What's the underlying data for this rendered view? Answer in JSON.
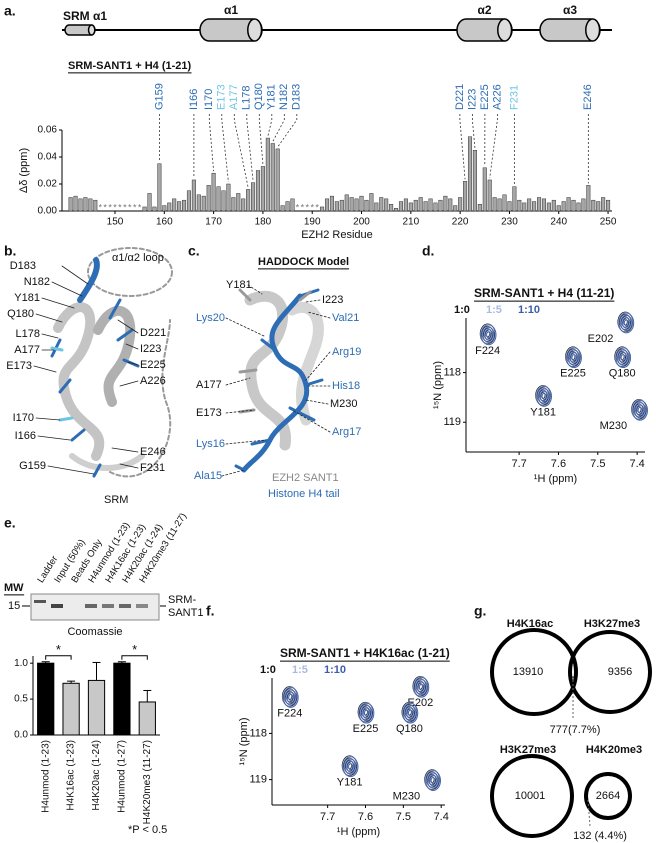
{
  "panel_labels": {
    "a": "a.",
    "b": "b.",
    "c": "c.",
    "d": "d.",
    "e": "e.",
    "f": "f.",
    "g": "g."
  },
  "panel_a": {
    "domains": [
      "SRM α1",
      "α1",
      "α2",
      "α3"
    ],
    "construct": "SRM-SANT1 + H4 (1-21)",
    "residue_labels": [
      {
        "text": "G159",
        "color": "#2d6db5"
      },
      {
        "text": "I166",
        "color": "#2d6db5"
      },
      {
        "text": "I170",
        "color": "#2d6db5"
      },
      {
        "text": "E173",
        "color": "#6ec6e6"
      },
      {
        "text": "A177",
        "color": "#6ec6e6"
      },
      {
        "text": "L178",
        "color": "#2d6db5"
      },
      {
        "text": "Q180",
        "color": "#2d6db5"
      },
      {
        "text": "Y181",
        "color": "#2d6db5"
      },
      {
        "text": "N182",
        "color": "#2d6db5"
      },
      {
        "text": "D183",
        "color": "#2d6db5"
      },
      {
        "text": "D221",
        "color": "#2d6db5"
      },
      {
        "text": "I223",
        "color": "#2d6db5"
      },
      {
        "text": "E225",
        "color": "#2d6db5"
      },
      {
        "text": "A226",
        "color": "#2d6db5"
      },
      {
        "text": "F231",
        "color": "#6ec6e6"
      },
      {
        "text": "E246",
        "color": "#2d6db5"
      }
    ]
  },
  "panel_b": {
    "labels": [
      "D183",
      "N182",
      "Y181",
      "Q180",
      "L178",
      "A177",
      "E173",
      "I170",
      "I166",
      "G159",
      "SRM",
      "α1/α2 loop",
      "D221",
      "I223",
      "E225",
      "A226",
      "E246",
      "F231"
    ]
  },
  "panel_c": {
    "title": "HADDOCK Model",
    "labels": [
      "Y181",
      "I223",
      "Lys20",
      "Val21",
      "A177",
      "Arg19",
      "His18",
      "E173",
      "M230",
      "Lys16",
      "Arg17",
      "Ala15"
    ],
    "legend": [
      "EZH2 SANT1",
      "Histone H4 tail"
    ]
  },
  "panel_e": {
    "mw_label": "MW",
    "mw_marker": 15,
    "lanes": [
      "Ladder",
      "Input (50%)",
      "Beads Only",
      "H4unmod (1-23)",
      "H4K16ac (1-23)",
      "H4K20ac (1-24)",
      "H4K20me3 (11-27)"
    ],
    "band_label": [
      "SRM-",
      "SANT1"
    ],
    "stain": "Coomassie",
    "footnote": "*P < 0.5"
  },
  "venn": [
    {
      "left": "H4K16ac",
      "right": "H3K27me3",
      "left_count": 13910,
      "right_count": 9356,
      "overlap": "777(7.7%)"
    },
    {
      "left": "H3K27me3",
      "right": "H4K20me3",
      "left_count": 10001,
      "right_count": 2664,
      "overlap": "132 (4.4%)"
    }
  ],
  "chart_data": [
    {
      "type": "bar",
      "x": [
        141,
        142,
        143,
        144,
        145,
        146,
        147,
        148,
        149,
        150,
        151,
        152,
        153,
        154,
        155,
        156,
        157,
        158,
        159,
        160,
        161,
        162,
        163,
        164,
        165,
        166,
        167,
        168,
        169,
        170,
        171,
        172,
        173,
        174,
        175,
        176,
        177,
        178,
        179,
        180,
        181,
        182,
        183,
        184,
        185,
        186,
        187,
        188,
        189,
        190,
        191,
        192,
        193,
        194,
        195,
        196,
        197,
        198,
        199,
        200,
        201,
        202,
        203,
        204,
        205,
        206,
        207,
        208,
        209,
        210,
        211,
        212,
        213,
        214,
        215,
        216,
        217,
        218,
        219,
        220,
        221,
        222,
        223,
        224,
        225,
        226,
        227,
        228,
        229,
        230,
        231,
        232,
        233,
        234,
        235,
        236,
        237,
        238,
        239,
        240,
        241,
        242,
        243,
        244,
        245,
        246,
        247,
        248,
        249,
        250
      ],
      "values": [
        0.01,
        0.011,
        0.009,
        0.01,
        0.009,
        0.008,
        null,
        null,
        null,
        null,
        null,
        null,
        null,
        null,
        null,
        0.003,
        0.013,
        0.003,
        0.035,
        0.004,
        0.006,
        0.009,
        0.007,
        0.008,
        0.015,
        0.023,
        0.012,
        0.011,
        0.019,
        0.028,
        0.018,
        0.015,
        0.02,
        0.01,
        0.013,
        0.009,
        0.016,
        0.021,
        0.03,
        0.033,
        0.054,
        0.05,
        0.046,
        0.004,
        0.007,
        0.009,
        null,
        null,
        null,
        null,
        null,
        0.003,
        0.009,
        0.011,
        0.007,
        0.008,
        0.012,
        0.01,
        0.009,
        0.011,
        0.008,
        0.013,
        0.006,
        0.01,
        0.009,
        0.005,
        0.002,
        0.007,
        0.009,
        0.006,
        0.008,
        0.01,
        0.007,
        0.009,
        0.006,
        0.008,
        0.011,
        0.009,
        0.004,
        0.01,
        0.022,
        0.055,
        0.045,
        0.005,
        0.032,
        0.023,
        0.01,
        0.009,
        0.012,
        0.007,
        0.018,
        0.008,
        0.006,
        0.009,
        0.007,
        0.01,
        0.009,
        0.006,
        0.008,
        0.004,
        0.007,
        0.01,
        0.008,
        0.006,
        0.009,
        0.019,
        0.008,
        0.007,
        0.01,
        0.008
      ],
      "missing_label": "*",
      "color": "#a6a6a6",
      "xlim": [
        139.25,
        250.8
      ],
      "ylim": [
        0,
        0.06
      ],
      "xticks": [
        150,
        160,
        170,
        180,
        190,
        200,
        210,
        220,
        230,
        240,
        250
      ],
      "yticks": [
        {
          "value": 0,
          "label": "0.00"
        },
        {
          "value": 0.02,
          "label": "0.02"
        },
        {
          "value": 0.04,
          "label": "0.04"
        },
        {
          "value": 0.06,
          "label": "0.06"
        }
      ],
      "xlabel": "EZH2 Residue",
      "ylabel": "Δδ (ppm)"
    },
    {
      "type": "nmr",
      "title": "SRM-SANT1 + H4 (11-21)",
      "series": [
        {
          "name": "1:0",
          "color": "#111111"
        },
        {
          "name": "1:5",
          "color": "#aab9dc"
        },
        {
          "name": "1:10",
          "color": "#3b5dab"
        }
      ],
      "peaks": {
        "labels": [
          "F224",
          "E225",
          "E202",
          "Q180",
          "Y181",
          "M230"
        ],
        "x": [
          7.78,
          7.563,
          7.43,
          7.438,
          7.639,
          7.395
        ],
        "y": [
          117.22,
          117.68,
          116.98,
          117.68,
          118.46,
          118.74
        ]
      },
      "xlim": [
        7.835,
        7.38
      ],
      "ylim": [
        116.9,
        119.6
      ],
      "xticks": [
        7.7,
        7.6,
        7.5,
        7.4
      ],
      "yticks": [
        118,
        119
      ],
      "xlabel": "¹H (ppm)",
      "ylabel": "¹⁵N (ppm)"
    },
    {
      "type": "bar",
      "categories": [
        "H4unmod (1-23)",
        "H4K16ac (1-23)",
        "H4K20ac (1-24)",
        "H4unmod (1-27)",
        "H4K20me3 (11-27)"
      ],
      "values": [
        1.0,
        0.72,
        0.76,
        1.0,
        0.46
      ],
      "errors": [
        0.02,
        0.03,
        0.25,
        0.02,
        0.16
      ],
      "colors": [
        "#000000",
        "#c8c8c8",
        "#c8c8c8",
        "#000000",
        "#c8c8c8"
      ],
      "ylim": [
        0,
        1.1
      ],
      "yticks": [
        {
          "value": 0,
          "label": "0.0"
        },
        {
          "value": 0.5,
          "label": "0.5"
        },
        {
          "value": 1,
          "label": "1.0"
        }
      ],
      "significance": {
        "label": "*",
        "pairs": [
          [
            "H4unmod (1-23)",
            "H4K16ac (1-23)"
          ],
          [
            "H4unmod (1-27)",
            "H4K20me3 (11-27)"
          ]
        ]
      }
    },
    {
      "type": "nmr",
      "title": "SRM-SANT1 + H4K16ac (1-21)",
      "series": [
        {
          "name": "1:0",
          "color": "#111111"
        },
        {
          "name": "1:5",
          "color": "#aab9dc"
        },
        {
          "name": "1:10",
          "color": "#3b5dab"
        }
      ],
      "peaks": {
        "labels": [
          "F224",
          "E225",
          "E202",
          "Q180",
          "Y181",
          "M230"
        ],
        "x": [
          7.8,
          7.6,
          7.455,
          7.484,
          7.642,
          7.424
        ],
        "y": [
          117.2,
          117.54,
          116.98,
          117.54,
          118.7,
          119.0
        ]
      },
      "xlim": [
        7.847,
        7.39
      ],
      "ylim": [
        116.8,
        119.55
      ],
      "xticks": [
        7.7,
        7.6,
        7.5,
        7.4
      ],
      "yticks": [
        118,
        119
      ],
      "xlabel": "¹H (ppm)",
      "ylabel": "¹⁵N (ppm)"
    }
  ]
}
